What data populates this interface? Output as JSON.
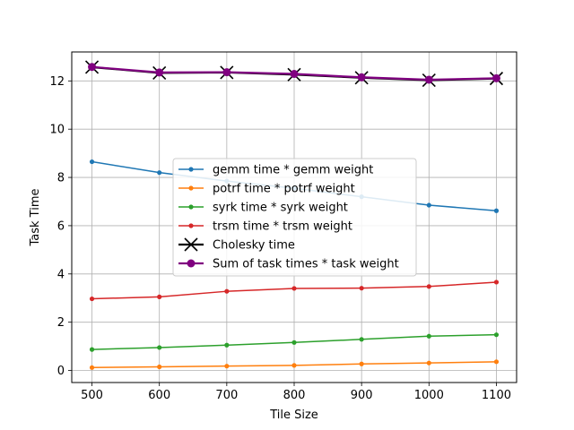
{
  "chart_data": {
    "type": "line",
    "title": "",
    "xlabel": "Tile Size",
    "ylabel": "Task Time",
    "x": [
      500,
      600,
      700,
      800,
      900,
      1000,
      1100
    ],
    "xlim": [
      470,
      1130
    ],
    "ylim": [
      -0.5,
      13.2
    ],
    "xticks": [
      "500",
      "600",
      "700",
      "800",
      "900",
      "1000",
      "1100"
    ],
    "yticks": [
      "0",
      "2",
      "4",
      "6",
      "8",
      "10",
      "12"
    ],
    "grid": true,
    "legend_position": "center",
    "series": [
      {
        "name": "gemm time * gemm weight",
        "color": "#1f77b4",
        "marker": "dot",
        "values": [
          8.65,
          8.2,
          7.85,
          7.55,
          7.2,
          6.85,
          6.62
        ]
      },
      {
        "name": "potrf time * potrf weight",
        "color": "#ff7f0e",
        "marker": "dot",
        "values": [
          0.12,
          0.15,
          0.18,
          0.21,
          0.27,
          0.31,
          0.36
        ]
      },
      {
        "name": "syrk time * syrk weight",
        "color": "#2ca02c",
        "marker": "dot",
        "values": [
          0.87,
          0.95,
          1.05,
          1.16,
          1.29,
          1.42,
          1.48
        ]
      },
      {
        "name": "trsm time * trsm weight",
        "color": "#d62728",
        "marker": "dot",
        "values": [
          2.97,
          3.05,
          3.28,
          3.4,
          3.41,
          3.48,
          3.66
        ]
      },
      {
        "name": "Cholesky time",
        "color": "#000000",
        "marker": "x",
        "values": [
          12.57,
          12.33,
          12.35,
          12.26,
          12.13,
          12.03,
          12.1
        ]
      },
      {
        "name": "Sum of task times * task weight",
        "color": "#800080",
        "marker": "circle",
        "values": [
          12.58,
          12.35,
          12.36,
          12.29,
          12.15,
          12.05,
          12.11
        ]
      }
    ]
  }
}
